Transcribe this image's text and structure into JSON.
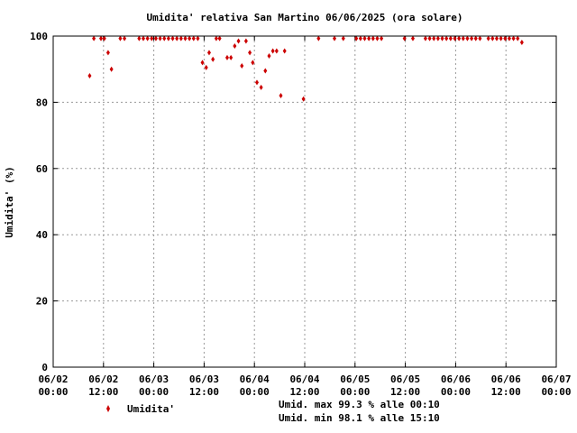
{
  "chart_data": {
    "type": "scatter",
    "title": "Umidita' relativa San Martino 06/06/2025 (ora solare)",
    "xlabel": "",
    "ylabel": "Umidita' (%)",
    "xlim_hours": [
      0,
      120
    ],
    "ylim": [
      0,
      100
    ],
    "yticks": [
      0,
      20,
      40,
      60,
      80,
      100
    ],
    "xticks": [
      {
        "hour": 0,
        "date": "06/02",
        "time": "00:00"
      },
      {
        "hour": 12,
        "date": "06/02",
        "time": "12:00"
      },
      {
        "hour": 24,
        "date": "06/03",
        "time": "00:00"
      },
      {
        "hour": 36,
        "date": "06/03",
        "time": "12:00"
      },
      {
        "hour": 48,
        "date": "06/04",
        "time": "00:00"
      },
      {
        "hour": 60,
        "date": "06/04",
        "time": "12:00"
      },
      {
        "hour": 72,
        "date": "06/05",
        "time": "00:00"
      },
      {
        "hour": 84,
        "date": "06/05",
        "time": "12:00"
      },
      {
        "hour": 96,
        "date": "06/06",
        "time": "00:00"
      },
      {
        "hour": 108,
        "date": "06/06",
        "time": "12:00"
      },
      {
        "hour": 120,
        "date": "06/07",
        "time": "00:00"
      }
    ],
    "grid": true,
    "series": [
      {
        "name": "Umidita'",
        "color": "#cc0000",
        "points": [
          [
            8.7,
            88
          ],
          [
            9.7,
            99.3
          ],
          [
            11.4,
            99.3
          ],
          [
            12.2,
            99.3
          ],
          [
            13.1,
            95
          ],
          [
            13.9,
            90
          ],
          [
            16.0,
            99.3
          ],
          [
            17.0,
            99.3
          ],
          [
            20.5,
            99.3
          ],
          [
            21.5,
            99.3
          ],
          [
            22.5,
            99.3
          ],
          [
            23.5,
            99.3
          ],
          [
            24.5,
            99.3
          ],
          [
            25.5,
            99.3
          ],
          [
            26.5,
            99.3
          ],
          [
            27.5,
            99.3
          ],
          [
            28.5,
            99.3
          ],
          [
            29.5,
            99.3
          ],
          [
            30.5,
            99.3
          ],
          [
            31.5,
            99.3
          ],
          [
            32.5,
            99.3
          ],
          [
            33.5,
            99.3
          ],
          [
            34.5,
            99.3
          ],
          [
            35.6,
            92
          ],
          [
            36.5,
            90.5
          ],
          [
            37.2,
            95
          ],
          [
            38.1,
            93
          ],
          [
            38.9,
            99.3
          ],
          [
            39.7,
            99.3
          ],
          [
            41.5,
            93.5
          ],
          [
            42.4,
            93.5
          ],
          [
            43.3,
            97
          ],
          [
            44.2,
            98.5
          ],
          [
            45.0,
            91
          ],
          [
            46.0,
            98.5
          ],
          [
            46.9,
            95
          ],
          [
            47.6,
            92
          ],
          [
            48.6,
            86
          ],
          [
            49.6,
            84.5
          ],
          [
            50.6,
            89.5
          ],
          [
            51.5,
            94
          ],
          [
            52.4,
            95.5
          ],
          [
            53.3,
            95.5
          ],
          [
            54.3,
            82
          ],
          [
            55.2,
            95.5
          ],
          [
            59.7,
            81
          ],
          [
            63.3,
            99.3
          ],
          [
            67.1,
            99.3
          ],
          [
            69.2,
            99.3
          ],
          [
            72.3,
            99.3
          ],
          [
            73.3,
            99.3
          ],
          [
            74.3,
            99.3
          ],
          [
            75.3,
            99.3
          ],
          [
            76.3,
            99.3
          ],
          [
            77.3,
            99.3
          ],
          [
            78.3,
            99.3
          ],
          [
            83.8,
            99.3
          ],
          [
            85.8,
            99.3
          ],
          [
            88.8,
            99.3
          ],
          [
            89.8,
            99.3
          ],
          [
            90.8,
            99.3
          ],
          [
            91.8,
            99.3
          ],
          [
            92.8,
            99.3
          ],
          [
            93.8,
            99.3
          ],
          [
            94.8,
            99.3
          ],
          [
            95.8,
            99.3
          ],
          [
            96.8,
            99.3
          ],
          [
            97.8,
            99.3
          ],
          [
            98.8,
            99.3
          ],
          [
            99.8,
            99.3
          ],
          [
            100.8,
            99.3
          ],
          [
            101.8,
            99.3
          ],
          [
            103.8,
            99.3
          ],
          [
            104.8,
            99.3
          ],
          [
            105.8,
            99.3
          ],
          [
            106.8,
            99.3
          ],
          [
            107.8,
            99.3
          ],
          [
            108.8,
            99.3
          ],
          [
            109.8,
            99.3
          ],
          [
            110.8,
            99.3
          ],
          [
            111.8,
            98.1
          ]
        ]
      }
    ],
    "legend": {
      "label": "Umidita'",
      "placement": "bottom-left"
    },
    "annotations": [
      "Umid. max 99.3 % alle 00:10",
      "Umid. min 98.1 % alle 15:10"
    ]
  }
}
